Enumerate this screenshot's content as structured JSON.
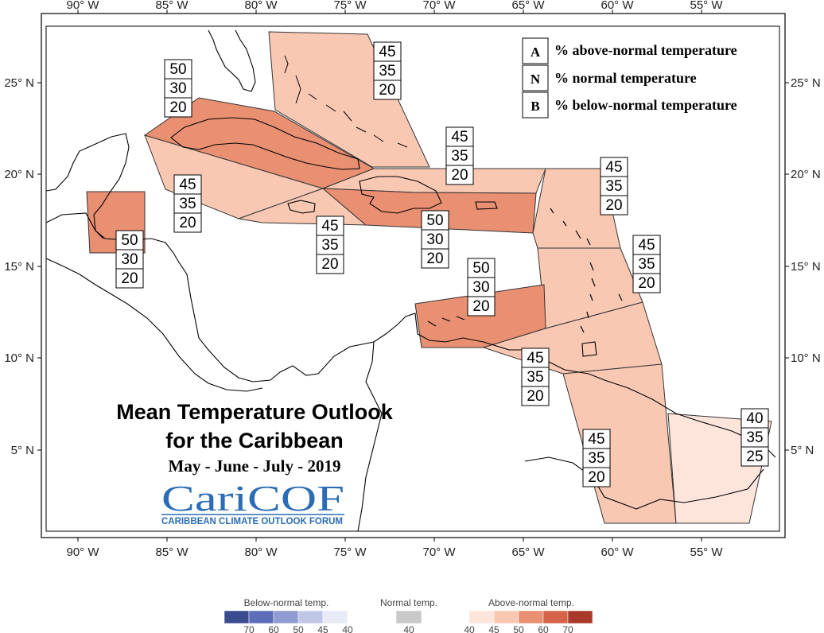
{
  "title": {
    "line1": "Mean Temperature Outlook",
    "line2": "for the Caribbean",
    "period": "May - June - July - 2019"
  },
  "logo": {
    "name": "CariCOF",
    "full_name": "CARIBBEAN CLIMATE OUTLOOK FORUM"
  },
  "axes": {
    "longitude_labels": [
      "90° W",
      "85° W",
      "80° W",
      "75° W",
      "70° W",
      "65° W",
      "60° W",
      "55° W"
    ],
    "latitude_labels": [
      "25° N",
      "20° N",
      "15° N",
      "10° N",
      "5° N"
    ]
  },
  "legend": {
    "entries": [
      {
        "letter": "A",
        "text": "% above-normal temperature"
      },
      {
        "letter": "N",
        "text": "% normal temperature"
      },
      {
        "letter": "B",
        "text": "% below-normal temperature"
      }
    ]
  },
  "zones": [
    {
      "id": "bahamas",
      "fill": "#f9c8b3",
      "probabilities": [
        "45",
        "35",
        "20"
      ]
    },
    {
      "id": "cuba",
      "fill": "#e98f72",
      "probabilities": [
        "50",
        "30",
        "20"
      ]
    },
    {
      "id": "cayman-jamaica",
      "fill": "#f9c8b3",
      "probabilities": [
        "45",
        "35",
        "20"
      ]
    },
    {
      "id": "jamaica-south",
      "fill": "#f9c8b3",
      "probabilities": [
        "45",
        "35",
        "20"
      ]
    },
    {
      "id": "belize",
      "fill": "#e98f72",
      "probabilities": [
        "50",
        "30",
        "20"
      ]
    },
    {
      "id": "turks-caicos",
      "fill": "#f9c8b3",
      "probabilities": [
        "45",
        "35",
        "20"
      ]
    },
    {
      "id": "hispaniola-pr",
      "fill": "#e98f72",
      "probabilities": [
        "50",
        "30",
        "20"
      ]
    },
    {
      "id": "leeward-islands",
      "fill": "#f9c8b3",
      "probabilities": [
        "45",
        "35",
        "20"
      ]
    },
    {
      "id": "windward-islands",
      "fill": "#f9c8b3",
      "probabilities": [
        "45",
        "35",
        "20"
      ]
    },
    {
      "id": "abc-islands",
      "fill": "#e98f72",
      "probabilities": [
        "50",
        "30",
        "20"
      ]
    },
    {
      "id": "trinidad-tobago",
      "fill": "#f9c8b3",
      "probabilities": [
        "45",
        "35",
        "20"
      ]
    },
    {
      "id": "guyana-suriname",
      "fill": "#f9c8b3",
      "probabilities": [
        "45",
        "35",
        "20"
      ]
    },
    {
      "id": "french-guiana",
      "fill": "#fde5dc",
      "probabilities": [
        "40",
        "35",
        "25"
      ]
    }
  ],
  "color_scale": {
    "below": {
      "label": "Below-normal temp.",
      "colors": [
        "#3b4b8f",
        "#5e6db8",
        "#8f9bd1",
        "#c0c6e6",
        "#e8ebf6"
      ],
      "ticks": [
        "70",
        "60",
        "50",
        "45",
        "40"
      ]
    },
    "normal": {
      "label": "Normal temp.",
      "colors": [
        "#c9c9c9"
      ],
      "ticks": [
        "40"
      ]
    },
    "above": {
      "label": "Above-normal temp.",
      "colors": [
        "#fde5dc",
        "#f9c8b3",
        "#e98f72",
        "#d5624a",
        "#a83a2c"
      ],
      "ticks": [
        "40",
        "45",
        "50",
        "60",
        "70"
      ]
    }
  }
}
